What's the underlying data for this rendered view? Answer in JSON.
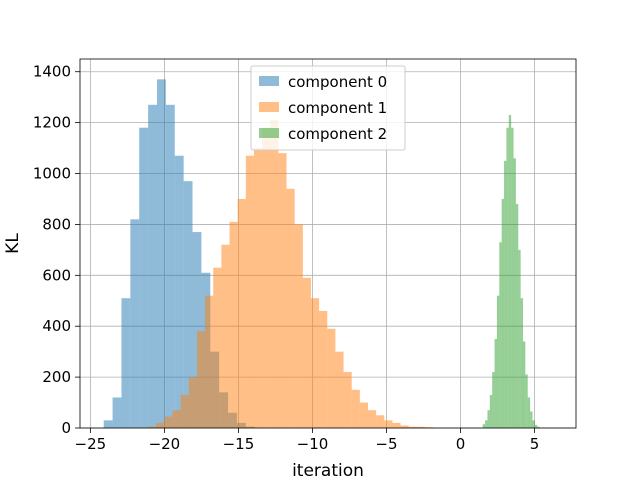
{
  "chart_data": {
    "type": "bar",
    "subtype": "histogram",
    "title": "",
    "xlabel": "iteration",
    "ylabel": "KL",
    "xlim": [
      -25.7,
      7.8
    ],
    "ylim": [
      0,
      1450
    ],
    "xticks": [
      -25,
      -20,
      -15,
      -10,
      -5,
      0,
      5
    ],
    "xtick_labels": [
      "−25",
      "−20",
      "−15",
      "−10",
      "−5",
      "0",
      "5"
    ],
    "yticks": [
      0,
      200,
      400,
      600,
      800,
      1000,
      1200,
      1400
    ],
    "ytick_labels": [
      "0",
      "200",
      "400",
      "600",
      "800",
      "1000",
      "1200",
      "1400"
    ],
    "grid": true,
    "legend_position": "upper center",
    "series": [
      {
        "name": "component 0",
        "color": "#1f77b4",
        "alpha": 0.5,
        "bin_start": -24.1,
        "bin_width": 0.6,
        "values": [
          30,
          120,
          510,
          820,
          1180,
          1270,
          1370,
          1270,
          1070,
          970,
          770,
          610,
          300,
          140,
          60,
          20,
          5
        ]
      },
      {
        "name": "component 1",
        "color": "#ff7f0e",
        "alpha": 0.5,
        "bin_start": -21.1,
        "bin_width": 0.55,
        "values": [
          5,
          20,
          45,
          70,
          130,
          200,
          380,
          520,
          630,
          720,
          810,
          900,
          1070,
          1100,
          1180,
          1210,
          1080,
          940,
          800,
          590,
          510,
          460,
          390,
          300,
          220,
          150,
          100,
          70,
          50,
          30,
          20,
          10,
          5,
          5,
          3
        ]
      },
      {
        "name": "component 2",
        "color": "#2ca02c",
        "alpha": 0.5,
        "bin_start": 1.5,
        "bin_width": 0.16,
        "values": [
          15,
          30,
          70,
          130,
          220,
          350,
          520,
          730,
          900,
          1050,
          1180,
          1230,
          1180,
          1060,
          880,
          700,
          510,
          340,
          210,
          120,
          65,
          30,
          12,
          5
        ]
      }
    ]
  }
}
